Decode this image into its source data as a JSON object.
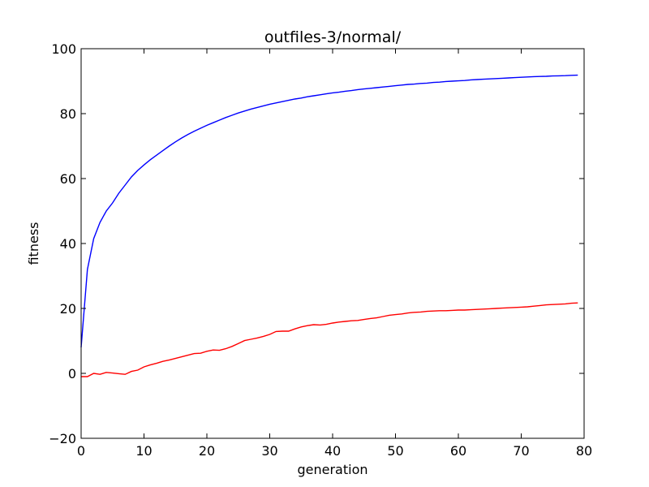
{
  "chart_data": {
    "type": "line",
    "title": "outfiles-3/normal/",
    "xlabel": "generation",
    "ylabel": "fitness",
    "xlim": [
      0,
      80
    ],
    "ylim": [
      -20,
      100
    ],
    "xticks": [
      0,
      10,
      20,
      30,
      40,
      50,
      60,
      70,
      80
    ],
    "yticks": [
      -20,
      0,
      20,
      40,
      60,
      80,
      100
    ],
    "grid": false,
    "legend": "none",
    "series": [
      {
        "color": "#0000ff",
        "x": [
          0,
          1,
          2,
          3,
          4,
          5,
          6,
          7,
          8,
          9,
          10,
          11,
          12,
          13,
          14,
          15,
          16,
          17,
          18,
          19,
          20,
          21,
          22,
          23,
          24,
          25,
          26,
          27,
          28,
          29,
          30,
          31,
          32,
          33,
          34,
          35,
          36,
          37,
          38,
          39,
          40,
          41,
          42,
          43,
          44,
          45,
          46,
          47,
          48,
          49,
          50,
          51,
          52,
          53,
          54,
          55,
          56,
          57,
          58,
          59,
          60,
          61,
          62,
          63,
          64,
          65,
          66,
          67,
          68,
          69,
          70,
          71,
          72,
          73,
          74,
          75,
          76,
          77,
          78,
          79
        ],
        "y": [
          8,
          32,
          41.5,
          46.5,
          50,
          52.5,
          55.5,
          58,
          60.5,
          62.5,
          64.2,
          65.8,
          67.2,
          68.6,
          70,
          71.3,
          72.5,
          73.6,
          74.6,
          75.5,
          76.4,
          77.2,
          78,
          78.8,
          79.5,
          80.2,
          80.8,
          81.4,
          81.9,
          82.4,
          82.9,
          83.3,
          83.7,
          84.1,
          84.5,
          84.8,
          85.2,
          85.5,
          85.8,
          86.1,
          86.4,
          86.6,
          86.9,
          87.1,
          87.4,
          87.6,
          87.8,
          88,
          88.2,
          88.4,
          88.6,
          88.8,
          89,
          89.1,
          89.3,
          89.4,
          89.6,
          89.7,
          89.9,
          90,
          90.1,
          90.2,
          90.4,
          90.5,
          90.6,
          90.7,
          90.8,
          90.9,
          91,
          91.1,
          91.2,
          91.3,
          91.4,
          91.45,
          91.5,
          91.6,
          91.65,
          91.7,
          91.8,
          91.85
        ]
      },
      {
        "color": "#ff0000",
        "x": [
          0,
          1,
          2,
          3,
          4,
          5,
          6,
          7,
          8,
          9,
          10,
          11,
          12,
          13,
          14,
          15,
          16,
          17,
          18,
          19,
          20,
          21,
          22,
          23,
          24,
          25,
          26,
          27,
          28,
          29,
          30,
          31,
          32,
          33,
          34,
          35,
          36,
          37,
          38,
          39,
          40,
          41,
          42,
          43,
          44,
          45,
          46,
          47,
          48,
          49,
          50,
          51,
          52,
          53,
          54,
          55,
          56,
          57,
          58,
          59,
          60,
          61,
          62,
          63,
          64,
          65,
          66,
          67,
          68,
          69,
          70,
          71,
          72,
          73,
          74,
          75,
          76,
          77,
          78,
          79
        ],
        "y": [
          -1,
          -1,
          0,
          -0.3,
          0.3,
          0.1,
          -0.1,
          -0.3,
          0.6,
          1,
          2,
          2.6,
          3.1,
          3.7,
          4.1,
          4.6,
          5.1,
          5.6,
          6.1,
          6.2,
          6.8,
          7.2,
          7.1,
          7.6,
          8.3,
          9.2,
          10.1,
          10.5,
          10.9,
          11.4,
          12,
          12.9,
          13,
          13,
          13.7,
          14.3,
          14.7,
          15,
          14.9,
          15.1,
          15.5,
          15.8,
          16,
          16.2,
          16.3,
          16.6,
          16.9,
          17.1,
          17.5,
          17.9,
          18.1,
          18.3,
          18.6,
          18.8,
          18.9,
          19.1,
          19.2,
          19.3,
          19.3,
          19.4,
          19.5,
          19.5,
          19.6,
          19.7,
          19.8,
          19.9,
          20,
          20.1,
          20.2,
          20.3,
          20.4,
          20.5,
          20.7,
          20.9,
          21.1,
          21.2,
          21.3,
          21.4,
          21.6,
          21.7
        ]
      }
    ]
  }
}
